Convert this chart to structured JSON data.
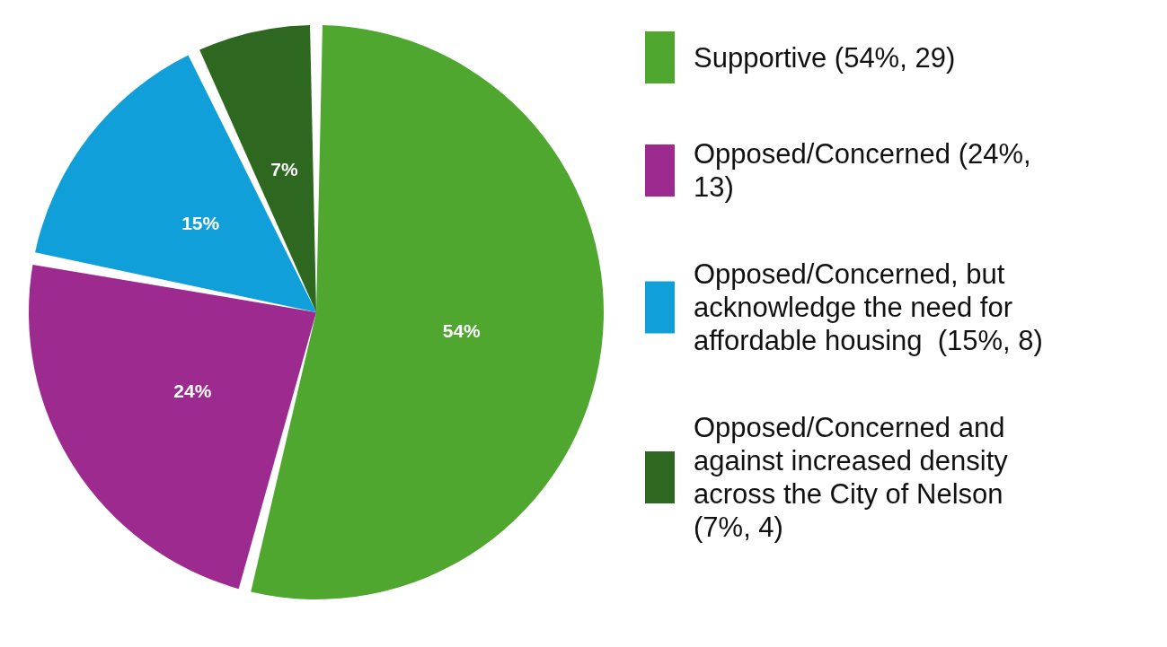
{
  "chart_data": {
    "type": "pie",
    "categories": [
      "Supportive (54%, 29)",
      "Opposed/Concerned (24%, 13)",
      "Opposed/Concerned, but acknowledge the need for affordable housing  (15%, 8)",
      "Opposed/Concerned and against increased density across the City of Nelson (7%, 4)"
    ],
    "values": [
      54,
      24,
      15,
      7
    ],
    "value_labels": [
      "54%",
      "24%",
      "15%",
      "7%"
    ],
    "colors": [
      "#4fa72f",
      "#9d2a8f",
      "#109fd8",
      "#2d6720"
    ],
    "legend": "right"
  }
}
